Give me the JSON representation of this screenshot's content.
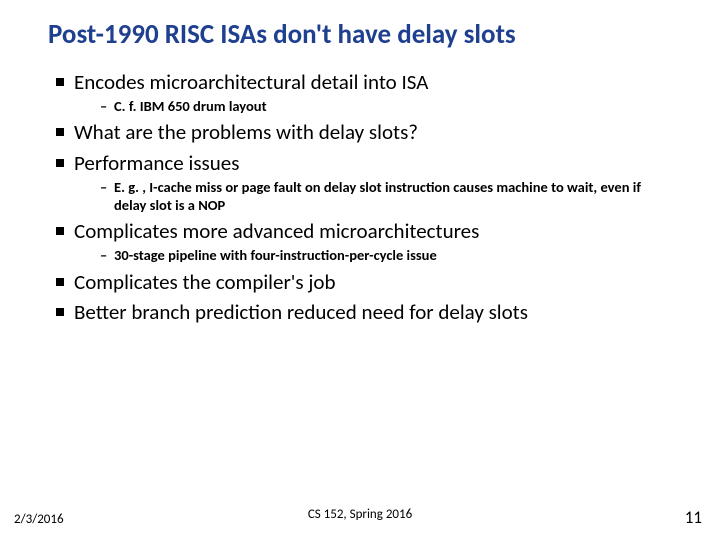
{
  "title": "Post-1990 RISC ISAs don't have delay slots",
  "title_color": "#1f3f8f",
  "body_color": "#000000",
  "background_color": "#ffffff",
  "title_fontsize": 27,
  "bullet_fontsize": 21,
  "sub_fontsize": 14.5,
  "bullets": {
    "b0": {
      "text": "Encodes microarchitectural detail into ISA",
      "sub0": "C. f. IBM 650 drum layout"
    },
    "b1": {
      "text": "What are the problems with delay slots?"
    },
    "b2": {
      "text": "Performance issues",
      "sub0": "E. g. , I-cache miss or page fault on delay slot instruction causes machine to wait, even if delay slot is a NOP"
    },
    "b3": {
      "text": "Complicates more advanced microarchitectures",
      "sub0": "30-stage pipeline with four-instruction-per-cycle issue"
    },
    "b4": {
      "text": "Complicates the compiler's job"
    },
    "b5": {
      "text": "Better branch prediction reduced need for delay slots"
    }
  },
  "footer": {
    "date": "2/3/2016",
    "course": "CS 152, Spring 2016",
    "page": "11"
  }
}
